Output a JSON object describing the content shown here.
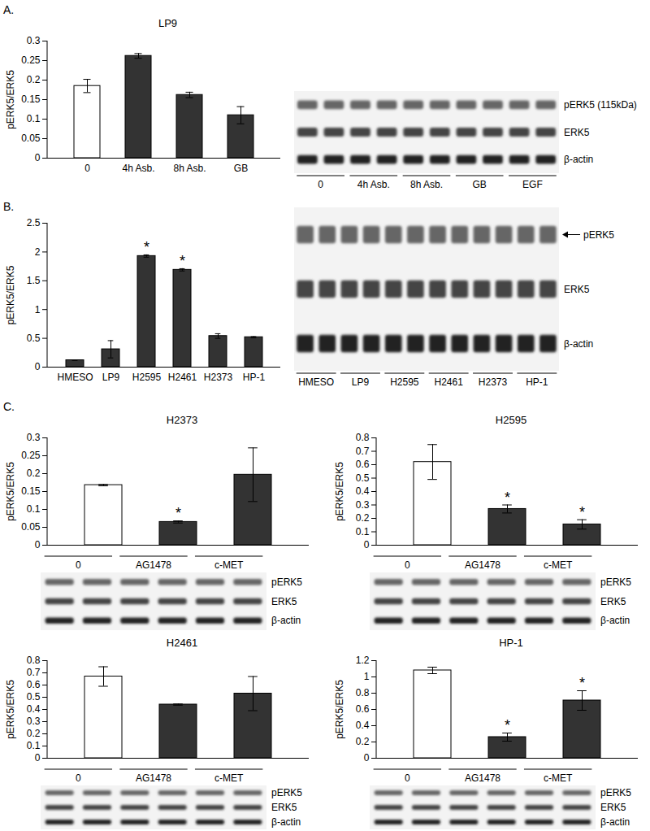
{
  "chart_data": [
    {
      "type": "bar",
      "panel": "A.",
      "title": "LP9",
      "ylabel": "pERK5/ERK5",
      "categories": [
        "0",
        "4h Asb.",
        "8h Asb.",
        "GB"
      ],
      "values": [
        0.185,
        0.262,
        0.162,
        0.11
      ],
      "error": [
        0.017,
        0.006,
        0.007,
        0.022
      ],
      "colors": [
        "#ffffff",
        "#333333",
        "#333333",
        "#333333"
      ],
      "annotations": [
        null,
        null,
        null,
        null
      ],
      "ylim": [
        0,
        0.3
      ],
      "yticks": [
        0,
        0.05,
        0.1,
        0.15,
        0.2,
        0.25,
        0.3
      ],
      "blot": {
        "lanes": [
          "0",
          "4h Asb.",
          "8h Asb.",
          "GB",
          "EGF"
        ],
        "rows": [
          "pERK5 (115kDa)",
          "ERK5",
          "β-actin"
        ]
      }
    },
    {
      "type": "bar",
      "panel": "B.",
      "ylabel": "pERK5/ERK5",
      "categories": [
        "HMESO",
        "LP9",
        "H2595",
        "H2461",
        "H2373",
        "HP-1"
      ],
      "values": [
        0.12,
        0.31,
        1.93,
        1.69,
        0.54,
        0.52
      ],
      "error": [
        0,
        0.15,
        0.02,
        0.02,
        0.04,
        0.01
      ],
      "colors": [
        "#333333",
        "#333333",
        "#333333",
        "#333333",
        "#333333",
        "#333333"
      ],
      "annotations": [
        null,
        null,
        "*",
        "*",
        null,
        null
      ],
      "ylim": [
        0,
        2.5
      ],
      "yticks": [
        0,
        0.5,
        1,
        1.5,
        2,
        2.5
      ],
      "blot": {
        "lanes": [
          "HMESO",
          "LP9",
          "H2595",
          "H2461",
          "H2373",
          "HP-1"
        ],
        "rows": [
          "pERK5",
          "ERK5",
          "β-actin"
        ]
      }
    },
    {
      "type": "bar",
      "panel": "C.",
      "title": "H2373",
      "ylabel": "pERK5/ERK5",
      "tick_labels": "y",
      "categories": [
        "0",
        "AG1478",
        "c-MET"
      ],
      "values": [
        0.168,
        0.065,
        0.197
      ],
      "error": [
        0.002,
        0.003,
        0.075
      ],
      "colors": [
        "#ffffff",
        "#333333",
        "#333333"
      ],
      "annotations": [
        null,
        "*",
        null
      ],
      "ylim": [
        0,
        0.3
      ],
      "yticks": [
        0,
        0.05,
        0.1,
        0.15,
        0.2,
        0.25,
        0.3
      ],
      "blot": {
        "lanes": [
          "0",
          "AG1478",
          "c-MET"
        ],
        "rows": [
          "pERK5",
          "ERK5",
          "β-actin"
        ]
      }
    },
    {
      "type": "bar",
      "title": "H2595",
      "ylabel": "pERK5/ERK5",
      "tick_labels": "y",
      "categories": [
        "0",
        "AG1478",
        "c-MET"
      ],
      "values": [
        0.62,
        0.27,
        0.155
      ],
      "error": [
        0.13,
        0.03,
        0.035
      ],
      "colors": [
        "#ffffff",
        "#333333",
        "#333333"
      ],
      "annotations": [
        null,
        "*",
        "*"
      ],
      "ylim": [
        0,
        0.8
      ],
      "yticks": [
        0,
        0.1,
        0.2,
        0.3,
        0.4,
        0.5,
        0.6,
        0.7,
        0.8
      ],
      "blot": {
        "lanes": [
          "0",
          "AG1478",
          "c-MET"
        ],
        "rows": [
          "pERK5",
          "ERK5",
          "β-actin"
        ]
      }
    },
    {
      "type": "bar",
      "title": "H2461",
      "ylabel": "pERK5/ERK5",
      "tick_labels": "y",
      "categories": [
        "0",
        "AG1478",
        "c-MET"
      ],
      "values": [
        0.67,
        0.44,
        0.53
      ],
      "error": [
        0.08,
        0.005,
        0.14
      ],
      "colors": [
        "#ffffff",
        "#333333",
        "#333333"
      ],
      "annotations": [
        null,
        null,
        null
      ],
      "ylim": [
        0,
        0.8
      ],
      "yticks": [
        0,
        0.1,
        0.2,
        0.3,
        0.4,
        0.5,
        0.6,
        0.7,
        0.8
      ],
      "blot": {
        "lanes": [
          "0",
          "AG1478",
          "c-MET"
        ],
        "rows": [
          "pERK5",
          "ERK5",
          "β-actin"
        ]
      }
    },
    {
      "type": "bar",
      "title": "HP-1",
      "ylabel": "pERK5/ERK5",
      "tick_labels": "y",
      "categories": [
        "0",
        "AG1478",
        "c-MET"
      ],
      "values": [
        1.08,
        0.26,
        0.71
      ],
      "error": [
        0.04,
        0.05,
        0.12
      ],
      "colors": [
        "#ffffff",
        "#333333",
        "#333333"
      ],
      "annotations": [
        null,
        "*",
        "*"
      ],
      "ylim": [
        0,
        1.2
      ],
      "yticks": [
        0,
        0.2,
        0.4,
        0.6,
        0.8,
        1,
        1.2
      ],
      "blot": {
        "lanes": [
          "0",
          "AG1478",
          "c-MET"
        ],
        "rows": [
          "pERK5",
          "ERK5",
          "β-actin"
        ]
      }
    }
  ]
}
